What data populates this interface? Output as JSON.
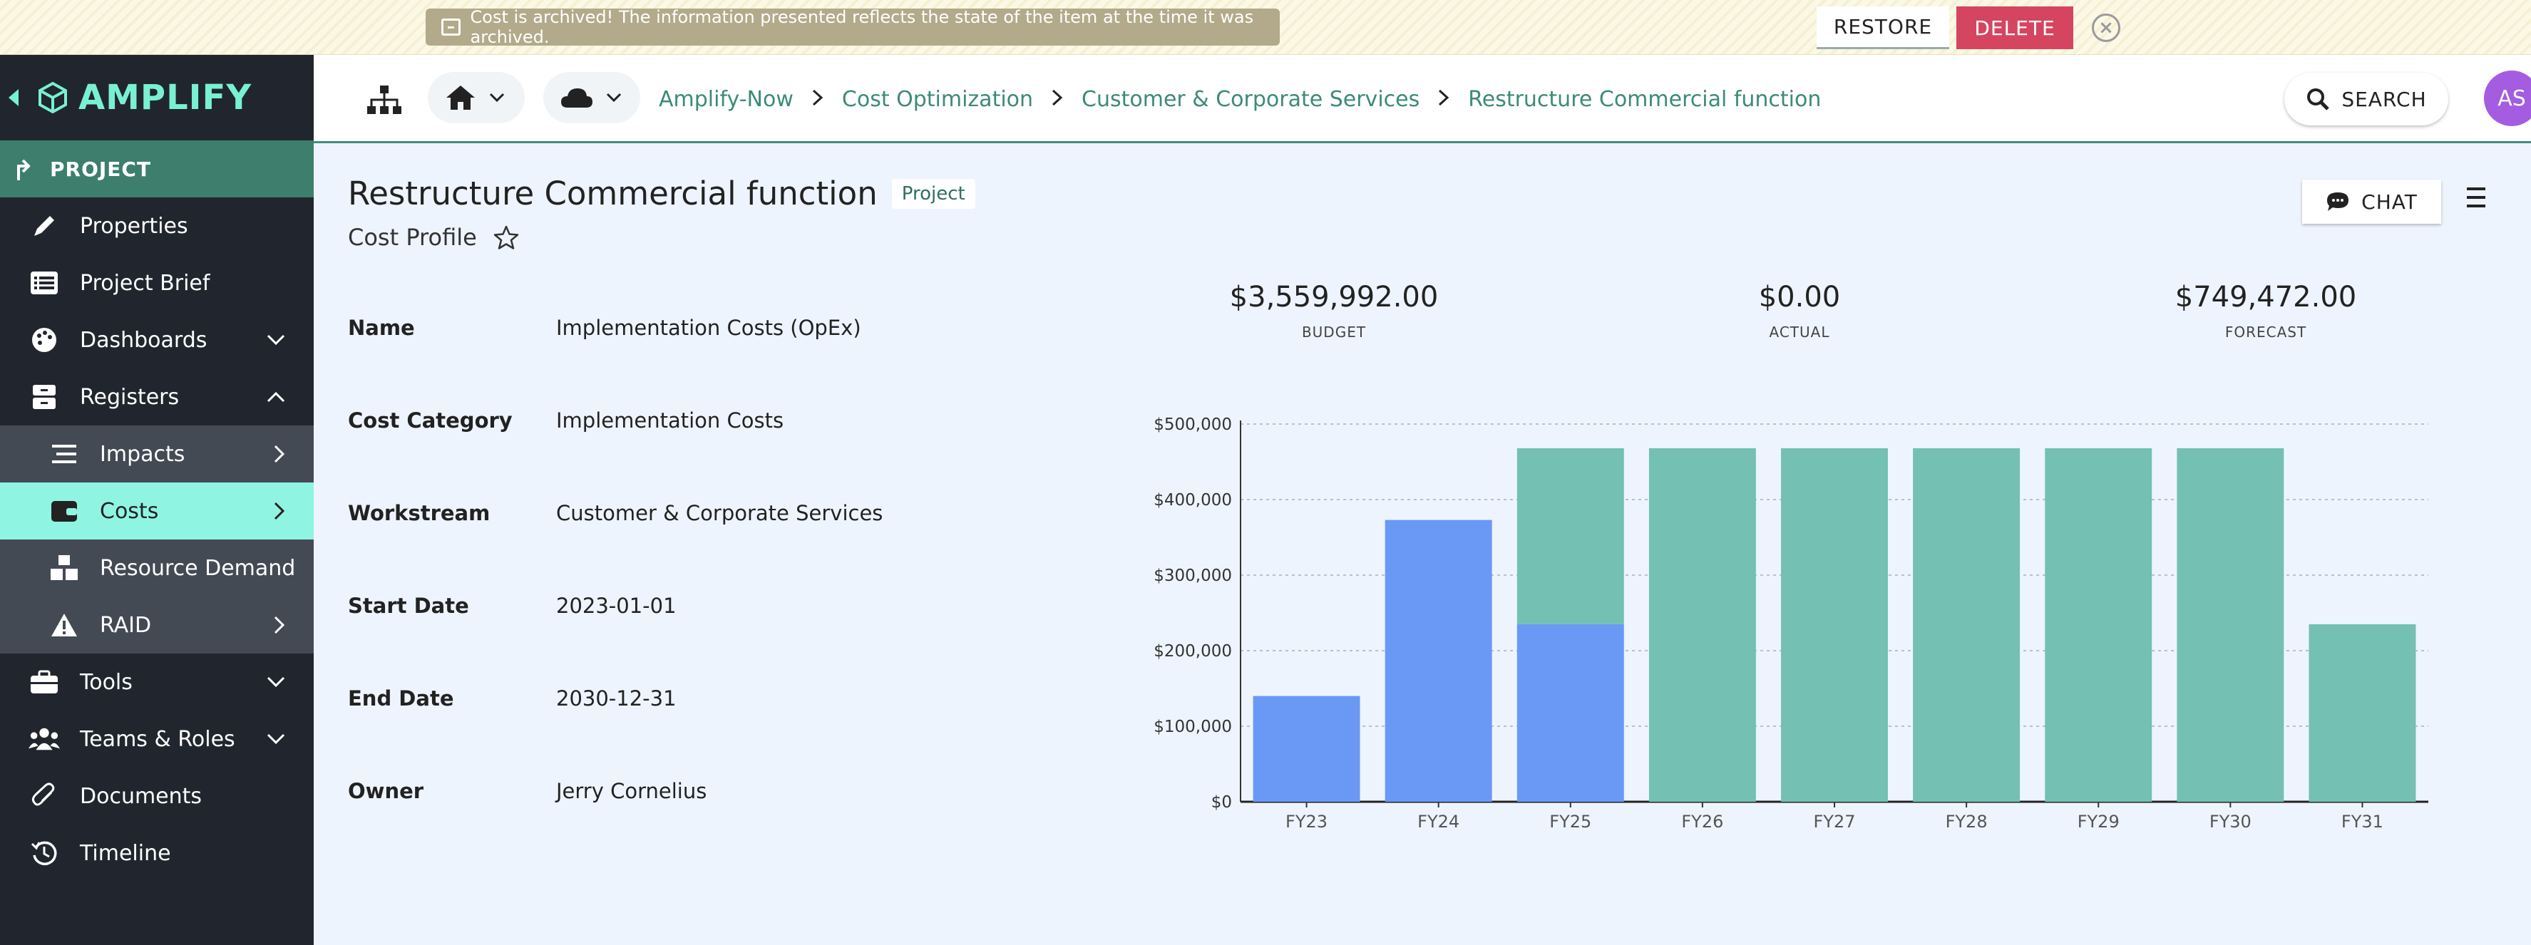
{
  "banner": {
    "message": "Cost is archived! The information presented reflects the state of the item at the time it was archived.",
    "restore_label": "RESTORE",
    "delete_label": "DELETE"
  },
  "sidebar": {
    "logo_text": "AMPLIFY",
    "section_label": "PROJECT",
    "items": [
      {
        "label": "Properties",
        "icon": "pencil-icon"
      },
      {
        "label": "Project Brief",
        "icon": "list-icon"
      },
      {
        "label": "Dashboards",
        "icon": "palette-icon"
      },
      {
        "label": "Registers",
        "icon": "archive-icon"
      },
      {
        "label": "Impacts",
        "icon": "lines-icon"
      },
      {
        "label": "Costs",
        "icon": "wallet-icon"
      },
      {
        "label": "Resource Demand",
        "icon": "boxes-icon"
      },
      {
        "label": "RAID",
        "icon": "warning-icon"
      },
      {
        "label": "Tools",
        "icon": "toolbox-icon"
      },
      {
        "label": "Teams & Roles",
        "icon": "people-icon"
      },
      {
        "label": "Documents",
        "icon": "paperclip-icon"
      },
      {
        "label": "Timeline",
        "icon": "history-icon"
      }
    ]
  },
  "header": {
    "breadcrumbs": [
      "Amplify-Now",
      "Cost Optimization",
      "Customer & Corporate Services",
      "Restructure Commercial function"
    ],
    "search_label": "SEARCH",
    "avatar_initials": "AS"
  },
  "main": {
    "title": "Restructure Commercial function",
    "badge": "Project",
    "subtitle": "Cost Profile",
    "chat_label": "CHAT",
    "fields": [
      {
        "label": "Name",
        "value": "Implementation Costs (OpEx)"
      },
      {
        "label": "Cost Category",
        "value": "Implementation Costs"
      },
      {
        "label": "Workstream",
        "value": "Customer & Corporate Services"
      },
      {
        "label": "Start Date",
        "value": "2023-01-01"
      },
      {
        "label": "End Date",
        "value": "2030-12-31"
      },
      {
        "label": "Owner",
        "value": "Jerry Cornelius"
      }
    ],
    "kpis": [
      {
        "value": "$3,559,992.00",
        "label": "BUDGET"
      },
      {
        "value": "$0.00",
        "label": "ACTUAL"
      },
      {
        "value": "$749,472.00",
        "label": "FORECAST"
      }
    ]
  },
  "colors": {
    "sidebar_bg": "#21262e",
    "accent": "#79f0d4",
    "active_item": "#8ff5e2",
    "series_blue": "#6a98f5",
    "series_teal": "#74c0b3"
  },
  "chart_data": {
    "type": "bar",
    "stacked": true,
    "categories": [
      "FY23",
      "FY24",
      "FY25",
      "FY26",
      "FY27",
      "FY28",
      "FY29",
      "FY30",
      "FY31"
    ],
    "series": [
      {
        "color": "#6a98f5",
        "values": [
          140000,
          373000,
          235000,
          0,
          0,
          0,
          0,
          0,
          0
        ]
      },
      {
        "color": "#74c0b3",
        "values": [
          0,
          0,
          233000,
          468000,
          468000,
          468000,
          468000,
          468000,
          235000
        ]
      }
    ],
    "ylim": [
      0,
      500000
    ],
    "yticks": [
      "$0",
      "$100,000",
      "$200,000",
      "$300,000",
      "$400,000",
      "$500,000"
    ],
    "grid": true
  }
}
